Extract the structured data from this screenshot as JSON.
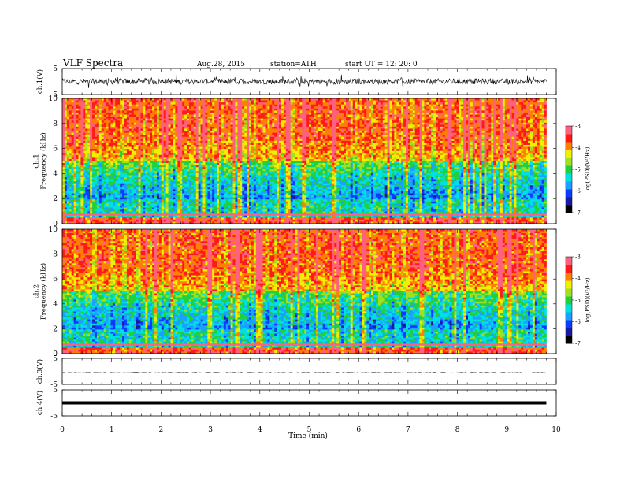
{
  "header": {
    "title": "VLF  Spectra",
    "date": "Aug.28, 2015",
    "station": "station=ATH",
    "start": "start  UT =    12: 20: 0"
  },
  "colors": {
    "spectrogram_scale": [
      "#000000",
      "#1a1aa0",
      "#0a3cff",
      "#1aa0ff",
      "#00e0e0",
      "#20d040",
      "#a0e020",
      "#f0f000",
      "#ff8000",
      "#ff1a1a",
      "#ff6080",
      "#ffffff"
    ],
    "trace": "#000000",
    "axis": "#000000"
  },
  "chart_data": [
    {
      "type": "line",
      "panel": "ch.1 waveform",
      "ylabel": "ch.1(V)",
      "ylim": [
        -5,
        5
      ],
      "y_ticks": [
        "5",
        "-5"
      ],
      "xlim": [
        0,
        10
      ],
      "x_span": [
        0,
        9.8
      ],
      "series": [
        {
          "values": "noise, amplitude about ±2 V"
        }
      ]
    },
    {
      "type": "heatmap",
      "panel": "ch.1 spectrogram",
      "ylabel": "ch.1\nFrequency  (kHz)",
      "ylim": [
        0,
        10
      ],
      "y_ticks": [
        "0",
        "2",
        "4",
        "6",
        "8",
        "10"
      ],
      "xlim": [
        0,
        10
      ],
      "x_span": [
        0,
        9.8
      ],
      "colorbar": {
        "label": "log(PSD)(V²/Hz)",
        "range": [
          -7,
          -3
        ],
        "ticks": [
          "-3",
          "-4",
          "-5",
          "-6",
          "-7"
        ]
      }
    },
    {
      "type": "heatmap",
      "panel": "ch.2 spectrogram",
      "ylabel": "ch.2\nFrequency  (kHz)",
      "ylim": [
        0,
        10
      ],
      "y_ticks": [
        "0",
        "2",
        "4",
        "6",
        "8",
        "10"
      ],
      "xlim": [
        0,
        10
      ],
      "x_span": [
        0,
        9.8
      ],
      "colorbar": {
        "label": "log(PSD)(V²/Hz)",
        "range": [
          -7,
          -3
        ],
        "ticks": [
          "-3",
          "-4",
          "-5",
          "-6",
          "-7"
        ]
      }
    },
    {
      "type": "line",
      "panel": "ch.3 waveform",
      "ylabel": "ch.3(V)",
      "ylim": [
        -5,
        5
      ],
      "y_ticks": [
        "5",
        "-5"
      ],
      "xlim": [
        0,
        10
      ],
      "x_span": [
        0,
        9.8
      ],
      "series": [
        {
          "values": "near-flat trace around -0.5 V"
        }
      ]
    },
    {
      "type": "line",
      "panel": "ch.4 waveform",
      "ylabel": "ch.4(V)",
      "ylim": [
        -5,
        5
      ],
      "y_ticks": [
        "5",
        "-5"
      ],
      "xlim": [
        0,
        10
      ],
      "x_span": [
        0,
        9.8
      ],
      "series": [
        {
          "values": "flat thick trace at 0 V"
        }
      ]
    }
  ],
  "x_axis": {
    "label": "Time  (min)",
    "ticks": [
      "0",
      "1",
      "2",
      "3",
      "4",
      "5",
      "6",
      "7",
      "8",
      "9",
      "10"
    ]
  }
}
